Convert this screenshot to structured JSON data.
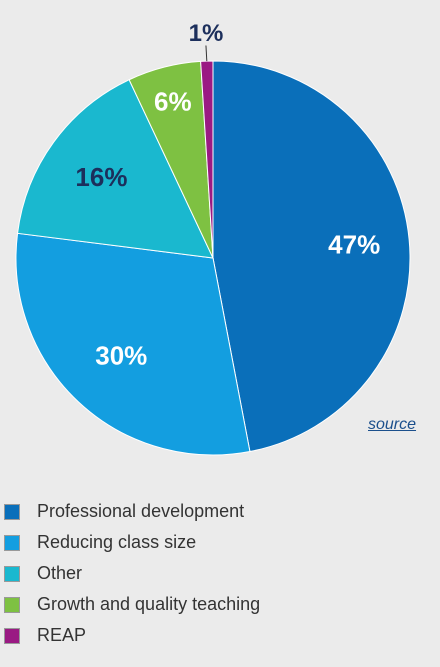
{
  "chart_data": {
    "type": "pie",
    "slices": [
      {
        "label": "Professional development",
        "value": 47,
        "display": "47%",
        "color": "#0a6fba"
      },
      {
        "label": "Reducing class size",
        "value": 30,
        "display": "30%",
        "color": "#139ee0"
      },
      {
        "label": "Other",
        "value": 16,
        "display": "16%",
        "color": "#1ab8cf"
      },
      {
        "label": "Growth and quality teaching",
        "value": 6,
        "display": "6%",
        "color": "#7ec142"
      },
      {
        "label": "REAP",
        "value": 1,
        "display": "1%",
        "color": "#9a1a83"
      }
    ],
    "legend_position": "bottom-left"
  },
  "source_link": "source"
}
